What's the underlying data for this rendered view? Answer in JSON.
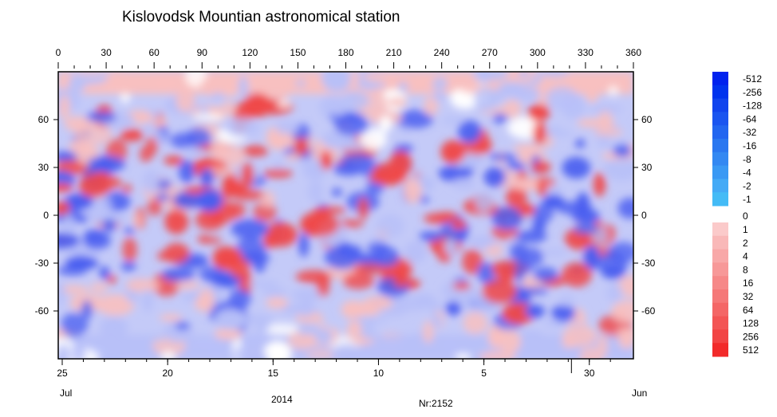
{
  "chart_data": {
    "type": "heatmap",
    "title": "Kislovodsk Mountian astronomical station",
    "subtitle_label": "Nr:2152",
    "top_axis": {
      "range": [
        0,
        360
      ],
      "ticks": [
        "0",
        "30",
        "60",
        "90",
        "120",
        "150",
        "180",
        "210",
        "240",
        "270",
        "300",
        "330",
        "360"
      ]
    },
    "left_axis": {
      "range": [
        -90,
        90
      ],
      "ticks": [
        "60",
        "30",
        "0",
        "-30",
        "-60"
      ]
    },
    "right_axis": {
      "range": [
        -90,
        90
      ],
      "ticks": [
        "60",
        "30",
        "0",
        "-30",
        "-60"
      ]
    },
    "bottom_axis": {
      "day_ticks": [
        "25",
        "20",
        "15",
        "10",
        "5",
        "30"
      ],
      "start_month": "Jul",
      "year": "2014",
      "end_month": "Jun"
    },
    "legend": {
      "negative": [
        "-512",
        "-256",
        "-128",
        "-64",
        "-32",
        "-16",
        "-8",
        "-4",
        "-2",
        "-1"
      ],
      "zero": "0",
      "positive": [
        "1",
        "2",
        "4",
        "8",
        "16",
        "32",
        "64",
        "128",
        "256",
        "512"
      ],
      "negative_colors": [
        "#0022ee",
        "#0033ee",
        "#1144ee",
        "#1a55f0",
        "#2266f0",
        "#2a77f0",
        "#3388f2",
        "#3a99f4",
        "#44aaf6",
        "#44bbf6"
      ],
      "positive_colors": [
        "#fbcaca",
        "#f9b8b8",
        "#f8a8a8",
        "#f79898",
        "#f68888",
        "#f57878",
        "#f46666",
        "#f35555",
        "#f24444",
        "#f22a2a"
      ]
    },
    "colors": {
      "blue": "#4a5ef0",
      "light_blue": "#b8c0f8",
      "red": "#f04848",
      "pink": "#f8c0c0",
      "white": "#ffffff"
    }
  }
}
